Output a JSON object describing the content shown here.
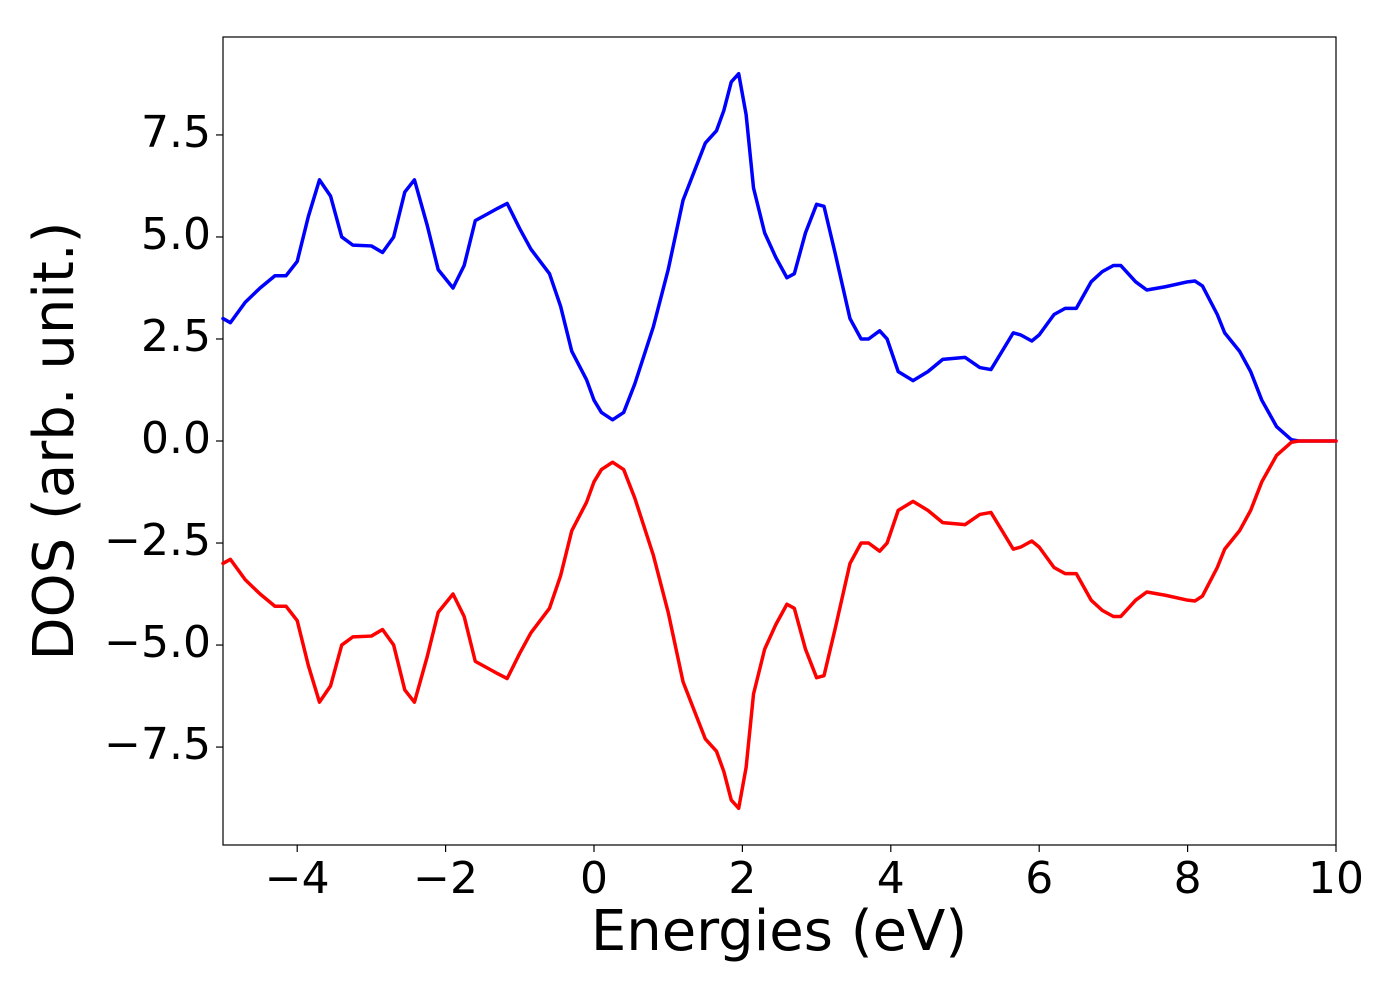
{
  "chart_data": {
    "type": "line",
    "xlabel": "Energies (eV)",
    "ylabel": "DOS (arb. unit.)",
    "x": [
      -5.0,
      -4.9,
      -4.7,
      -4.5,
      -4.3,
      -4.15,
      -4.0,
      -3.85,
      -3.7,
      -3.55,
      -3.4,
      -3.25,
      -3.0,
      -2.85,
      -2.7,
      -2.55,
      -2.42,
      -2.25,
      -2.1,
      -1.9,
      -1.75,
      -1.6,
      -1.4,
      -1.3,
      -1.17,
      -1.0,
      -0.85,
      -0.6,
      -0.45,
      -0.3,
      -0.1,
      0.0,
      0.1,
      0.25,
      0.4,
      0.55,
      0.8,
      1.0,
      1.2,
      1.35,
      1.5,
      1.65,
      1.75,
      1.85,
      1.95,
      2.05,
      2.15,
      2.3,
      2.45,
      2.6,
      2.7,
      2.85,
      3.0,
      3.1,
      3.25,
      3.45,
      3.6,
      3.7,
      3.85,
      3.95,
      4.1,
      4.3,
      4.5,
      4.7,
      5.0,
      5.2,
      5.35,
      5.5,
      5.65,
      5.75,
      5.9,
      6.0,
      6.2,
      6.35,
      6.5,
      6.7,
      6.85,
      7.0,
      7.1,
      7.3,
      7.45,
      7.7,
      8.0,
      8.1,
      8.2,
      8.4,
      8.5,
      8.7,
      8.85,
      9.0,
      9.2,
      9.4,
      9.5,
      10.0
    ],
    "series": [
      {
        "color": "#0000ff",
        "values": [
          3.0,
          2.9,
          3.4,
          3.75,
          4.05,
          4.05,
          4.4,
          5.5,
          6.4,
          6.0,
          5.0,
          4.8,
          4.78,
          4.62,
          5.0,
          6.1,
          6.4,
          5.3,
          4.2,
          3.75,
          4.3,
          5.4,
          5.6,
          5.7,
          5.82,
          5.2,
          4.7,
          4.1,
          3.3,
          2.2,
          1.5,
          1.0,
          0.7,
          0.52,
          0.7,
          1.4,
          2.8,
          4.2,
          5.9,
          6.6,
          7.3,
          7.6,
          8.1,
          8.8,
          9.0,
          8.0,
          6.2,
          5.1,
          4.5,
          4.0,
          4.1,
          5.1,
          5.8,
          5.75,
          4.6,
          3.0,
          2.5,
          2.5,
          2.7,
          2.5,
          1.7,
          1.48,
          1.7,
          2.0,
          2.05,
          1.8,
          1.75,
          2.2,
          2.65,
          2.6,
          2.45,
          2.6,
          3.1,
          3.25,
          3.25,
          3.9,
          4.15,
          4.3,
          4.3,
          3.9,
          3.7,
          3.78,
          3.9,
          3.92,
          3.8,
          3.1,
          2.65,
          2.2,
          1.7,
          1.0,
          0.35,
          0.03,
          0.0,
          0.0
        ]
      },
      {
        "color": "#ff0000",
        "values": [
          -3.0,
          -2.9,
          -3.4,
          -3.75,
          -4.05,
          -4.05,
          -4.4,
          -5.5,
          -6.4,
          -6.0,
          -5.0,
          -4.8,
          -4.78,
          -4.62,
          -5.0,
          -6.1,
          -6.4,
          -5.3,
          -4.2,
          -3.75,
          -4.3,
          -5.4,
          -5.6,
          -5.7,
          -5.82,
          -5.2,
          -4.7,
          -4.1,
          -3.3,
          -2.2,
          -1.5,
          -1.0,
          -0.7,
          -0.52,
          -0.7,
          -1.4,
          -2.8,
          -4.2,
          -5.9,
          -6.6,
          -7.3,
          -7.6,
          -8.1,
          -8.8,
          -9.0,
          -8.0,
          -6.2,
          -5.1,
          -4.5,
          -4.0,
          -4.1,
          -5.1,
          -5.8,
          -5.75,
          -4.6,
          -3.0,
          -2.5,
          -2.5,
          -2.7,
          -2.5,
          -1.7,
          -1.48,
          -1.7,
          -2.0,
          -2.05,
          -1.8,
          -1.75,
          -2.2,
          -2.65,
          -2.6,
          -2.45,
          -2.6,
          -3.1,
          -3.25,
          -3.25,
          -3.9,
          -4.15,
          -4.3,
          -4.3,
          -3.9,
          -3.7,
          -3.78,
          -3.9,
          -3.92,
          -3.8,
          -3.1,
          -2.65,
          -2.2,
          -1.7,
          -1.0,
          -0.35,
          -0.03,
          0.0,
          0.0
        ]
      }
    ],
    "xlim": [
      -5,
      10
    ],
    "xticks": [
      {
        "value": -4,
        "label": "−4"
      },
      {
        "value": -2,
        "label": "−2"
      },
      0,
      2,
      4,
      6,
      8,
      10
    ],
    "ylim": [
      -9.9,
      9.9
    ],
    "yticks": [
      {
        "value": -7.5,
        "label": "−7.5"
      },
      {
        "value": -5,
        "label": "−5.0"
      },
      {
        "value": -2.5,
        "label": "−2.5"
      },
      {
        "value": 0,
        "label": "0.0"
      },
      2.5,
      {
        "value": 5,
        "label": "5.0"
      },
      7.5
    ],
    "grid": false
  }
}
